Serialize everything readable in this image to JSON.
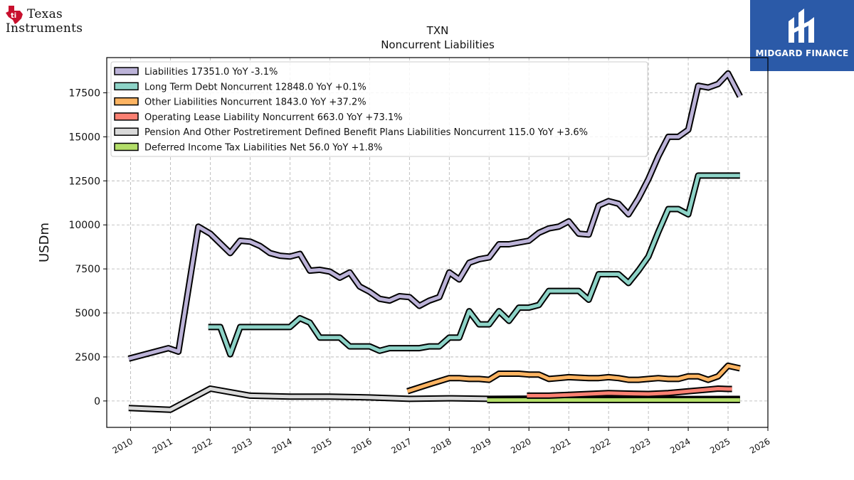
{
  "brand": {
    "ti_line1": "Texas",
    "ti_line2": "Instruments",
    "midgard": "MIDGARD FINANCE",
    "ti_icon": "texas-state-ti-icon",
    "midgard_icon": "midgard-m-icon",
    "ti_red": "#c8102e",
    "midgard_blue": "#2b5aa8"
  },
  "chart_data": {
    "type": "line",
    "title": "TXN",
    "subtitle": "Noncurrent  Liabilities",
    "ylabel": "USDm",
    "xlabel": "",
    "xlim": [
      2009.4,
      2026.0
    ],
    "ylim": [
      -1500,
      19500
    ],
    "yticks": [
      0,
      2500,
      5000,
      7500,
      10000,
      12500,
      15000,
      17500
    ],
    "xticks": [
      2010,
      2011,
      2012,
      2013,
      2014,
      2015,
      2016,
      2017,
      2018,
      2019,
      2020,
      2021,
      2022,
      2023,
      2024,
      2025,
      2026
    ],
    "grid": true,
    "legend": "top-left",
    "series": [
      {
        "name": "Liabilities  17351.0 YoY -3.1%",
        "color": "#bcb3d8",
        "points": [
          [
            2009.95,
            2400
          ],
          [
            2010.95,
            3000
          ],
          [
            2011.2,
            2800
          ],
          [
            2011.7,
            9900
          ],
          [
            2012.0,
            9500
          ],
          [
            2012.5,
            8400
          ],
          [
            2012.75,
            9100
          ],
          [
            2013.0,
            9050
          ],
          [
            2013.25,
            8800
          ],
          [
            2013.5,
            8400
          ],
          [
            2013.75,
            8250
          ],
          [
            2014.0,
            8200
          ],
          [
            2014.25,
            8350
          ],
          [
            2014.5,
            7400
          ],
          [
            2014.75,
            7450
          ],
          [
            2015.0,
            7350
          ],
          [
            2015.25,
            7000
          ],
          [
            2015.5,
            7300
          ],
          [
            2015.75,
            6500
          ],
          [
            2016.0,
            6200
          ],
          [
            2016.25,
            5800
          ],
          [
            2016.5,
            5700
          ],
          [
            2016.75,
            5950
          ],
          [
            2017.0,
            5900
          ],
          [
            2017.25,
            5400
          ],
          [
            2017.5,
            5700
          ],
          [
            2017.75,
            5900
          ],
          [
            2018.0,
            7300
          ],
          [
            2018.25,
            6900
          ],
          [
            2018.5,
            7850
          ],
          [
            2018.75,
            8050
          ],
          [
            2019.0,
            8150
          ],
          [
            2019.25,
            8900
          ],
          [
            2019.5,
            8900
          ],
          [
            2019.75,
            9000
          ],
          [
            2020.0,
            9100
          ],
          [
            2020.25,
            9550
          ],
          [
            2020.5,
            9800
          ],
          [
            2020.75,
            9900
          ],
          [
            2021.0,
            10200
          ],
          [
            2021.25,
            9500
          ],
          [
            2021.5,
            9450
          ],
          [
            2021.75,
            11100
          ],
          [
            2022.0,
            11350
          ],
          [
            2022.25,
            11200
          ],
          [
            2022.5,
            10600
          ],
          [
            2022.75,
            11500
          ],
          [
            2023.0,
            12600
          ],
          [
            2023.25,
            13900
          ],
          [
            2023.5,
            15000
          ],
          [
            2023.75,
            15000
          ],
          [
            2024.0,
            15400
          ],
          [
            2024.25,
            17900
          ],
          [
            2024.5,
            17800
          ],
          [
            2024.75,
            18000
          ],
          [
            2025.0,
            18600
          ],
          [
            2025.3,
            17300
          ]
        ]
      },
      {
        "name": "Long Term Debt Noncurrent  12848.0 YoY +0.1%",
        "color": "#8dd3c7",
        "points": [
          [
            2011.95,
            4200
          ],
          [
            2012.25,
            4200
          ],
          [
            2012.5,
            2650
          ],
          [
            2012.75,
            4200
          ],
          [
            2013.0,
            4200
          ],
          [
            2013.5,
            4200
          ],
          [
            2014.0,
            4200
          ],
          [
            2014.25,
            4700
          ],
          [
            2014.5,
            4450
          ],
          [
            2014.75,
            3600
          ],
          [
            2015.0,
            3600
          ],
          [
            2015.25,
            3600
          ],
          [
            2015.5,
            3100
          ],
          [
            2015.75,
            3100
          ],
          [
            2016.0,
            3100
          ],
          [
            2016.25,
            2850
          ],
          [
            2016.5,
            3000
          ],
          [
            2016.75,
            3000
          ],
          [
            2017.0,
            3000
          ],
          [
            2017.25,
            3000
          ],
          [
            2017.5,
            3100
          ],
          [
            2017.75,
            3100
          ],
          [
            2018.0,
            3600
          ],
          [
            2018.25,
            3600
          ],
          [
            2018.5,
            5100
          ],
          [
            2018.75,
            4350
          ],
          [
            2019.0,
            4350
          ],
          [
            2019.25,
            5100
          ],
          [
            2019.5,
            4550
          ],
          [
            2019.75,
            5300
          ],
          [
            2020.0,
            5300
          ],
          [
            2020.25,
            5450
          ],
          [
            2020.5,
            6250
          ],
          [
            2020.75,
            6250
          ],
          [
            2021.0,
            6250
          ],
          [
            2021.25,
            6250
          ],
          [
            2021.5,
            5750
          ],
          [
            2021.75,
            7200
          ],
          [
            2022.0,
            7200
          ],
          [
            2022.25,
            7200
          ],
          [
            2022.5,
            6700
          ],
          [
            2022.75,
            7400
          ],
          [
            2023.0,
            8200
          ],
          [
            2023.25,
            9600
          ],
          [
            2023.5,
            10900
          ],
          [
            2023.75,
            10900
          ],
          [
            2024.0,
            10600
          ],
          [
            2024.25,
            12800
          ],
          [
            2024.5,
            12800
          ],
          [
            2024.75,
            12800
          ],
          [
            2025.0,
            12800
          ],
          [
            2025.3,
            12800
          ]
        ]
      },
      {
        "name": "Other Liabilities Noncurrent  1843.0 YoY +37.2%",
        "color": "#fdb462",
        "points": [
          [
            2016.95,
            550
          ],
          [
            2017.5,
            950
          ],
          [
            2018.0,
            1300
          ],
          [
            2018.25,
            1300
          ],
          [
            2018.5,
            1250
          ],
          [
            2018.75,
            1250
          ],
          [
            2019.0,
            1200
          ],
          [
            2019.25,
            1550
          ],
          [
            2019.5,
            1550
          ],
          [
            2019.75,
            1550
          ],
          [
            2020.0,
            1500
          ],
          [
            2020.25,
            1500
          ],
          [
            2020.5,
            1250
          ],
          [
            2020.75,
            1300
          ],
          [
            2021.0,
            1350
          ],
          [
            2021.5,
            1300
          ],
          [
            2021.75,
            1300
          ],
          [
            2022.0,
            1350
          ],
          [
            2022.25,
            1300
          ],
          [
            2022.5,
            1200
          ],
          [
            2022.75,
            1200
          ],
          [
            2023.0,
            1250
          ],
          [
            2023.25,
            1300
          ],
          [
            2023.5,
            1250
          ],
          [
            2023.75,
            1250
          ],
          [
            2024.0,
            1400
          ],
          [
            2024.25,
            1400
          ],
          [
            2024.5,
            1200
          ],
          [
            2024.75,
            1400
          ],
          [
            2025.0,
            2000
          ],
          [
            2025.3,
            1850
          ]
        ]
      },
      {
        "name": "Operating Lease Liability Noncurrent  663.0 YoY +73.1%",
        "color": "#fb8072",
        "points": [
          [
            2019.95,
            300
          ],
          [
            2020.5,
            300
          ],
          [
            2021.0,
            350
          ],
          [
            2021.5,
            400
          ],
          [
            2022.0,
            450
          ],
          [
            2022.5,
            420
          ],
          [
            2023.0,
            400
          ],
          [
            2023.5,
            450
          ],
          [
            2024.0,
            550
          ],
          [
            2024.5,
            650
          ],
          [
            2024.75,
            700
          ],
          [
            2025.0,
            680
          ],
          [
            2025.1,
            680
          ]
        ]
      },
      {
        "name": "Pension And Other Postretirement Defined Benefit Plans Liabilities Noncurrent  115.0 YoY +3.6%",
        "color": "#d9d9d9",
        "points": [
          [
            2009.95,
            -400
          ],
          [
            2011.0,
            -500
          ],
          [
            2012.0,
            700
          ],
          [
            2013.0,
            300
          ],
          [
            2014.0,
            250
          ],
          [
            2015.0,
            250
          ],
          [
            2016.0,
            200
          ],
          [
            2017.0,
            120
          ],
          [
            2018.0,
            150
          ],
          [
            2019.0,
            120
          ],
          [
            2020.0,
            130
          ],
          [
            2021.0,
            120
          ],
          [
            2022.0,
            120
          ],
          [
            2023.0,
            110
          ],
          [
            2024.0,
            110
          ],
          [
            2025.3,
            115
          ]
        ]
      },
      {
        "name": "Deferred Income Tax Liabilities Net  56.0 YoY +1.8%",
        "color": "#b3de69",
        "points": [
          [
            2018.95,
            50
          ],
          [
            2020.0,
            55
          ],
          [
            2021.0,
            55
          ],
          [
            2022.0,
            55
          ],
          [
            2023.0,
            55
          ],
          [
            2024.0,
            56
          ],
          [
            2025.3,
            56
          ]
        ]
      }
    ]
  }
}
